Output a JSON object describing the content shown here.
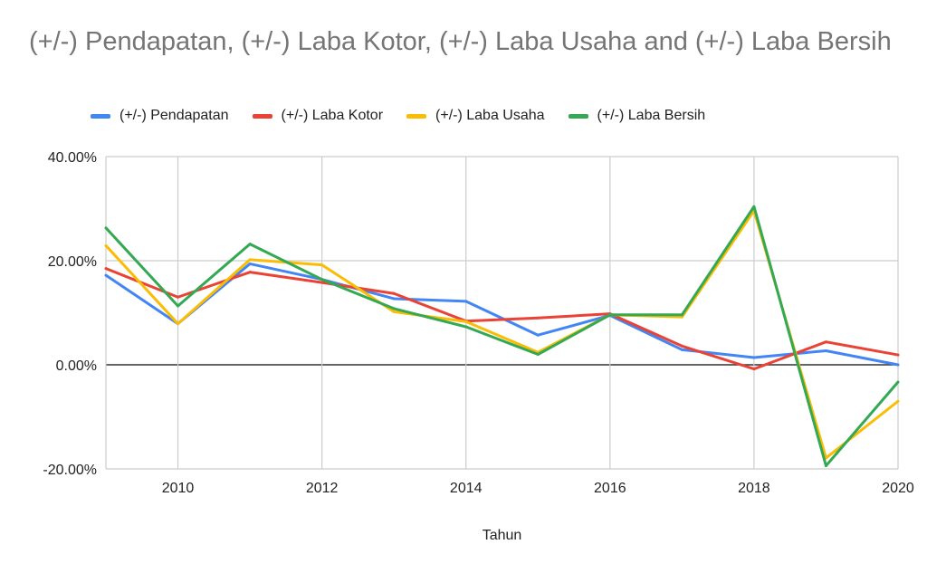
{
  "chart_data": {
    "type": "line",
    "title": "(+/-) Pendapatan, (+/-) Laba Kotor, (+/-) Laba Usaha and (+/-) Laba Bersih",
    "xlabel": "Tahun",
    "ylabel": "",
    "x": [
      2009,
      2010,
      2011,
      2012,
      2013,
      2014,
      2015,
      2016,
      2017,
      2018,
      2019,
      2020
    ],
    "xlim": [
      2009,
      2020
    ],
    "xticks": [
      "2010",
      "2012",
      "2014",
      "2016",
      "2018",
      "2020"
    ],
    "ylim": [
      -20,
      40
    ],
    "yticks": [
      "40.00%",
      "20.00%",
      "0.00%",
      "-20.00%"
    ],
    "grid": true,
    "legend": "top",
    "series": [
      {
        "name": "(+/-) Pendapatan",
        "color": "#4285f4",
        "values": [
          17.2,
          7.9,
          19.4,
          16.4,
          12.7,
          12.2,
          5.7,
          9.5,
          2.9,
          1.4,
          2.7,
          0.0
        ]
      },
      {
        "name": "(+/-) Laba Kotor",
        "color": "#ea4335",
        "values": [
          18.5,
          13.0,
          17.8,
          15.8,
          13.7,
          8.4,
          9.0,
          9.8,
          3.6,
          -0.8,
          4.4,
          1.9
        ]
      },
      {
        "name": "(+/-) Laba Usaha",
        "color": "#fbbc04",
        "values": [
          22.9,
          7.9,
          20.2,
          19.2,
          10.2,
          8.3,
          2.4,
          9.6,
          9.2,
          29.6,
          -17.9,
          -7.0
        ]
      },
      {
        "name": "(+/-) Laba Bersih",
        "color": "#34a853",
        "values": [
          26.3,
          11.3,
          23.2,
          16.4,
          10.8,
          7.3,
          2.0,
          9.6,
          9.6,
          30.4,
          -19.4,
          -3.3
        ]
      }
    ]
  }
}
